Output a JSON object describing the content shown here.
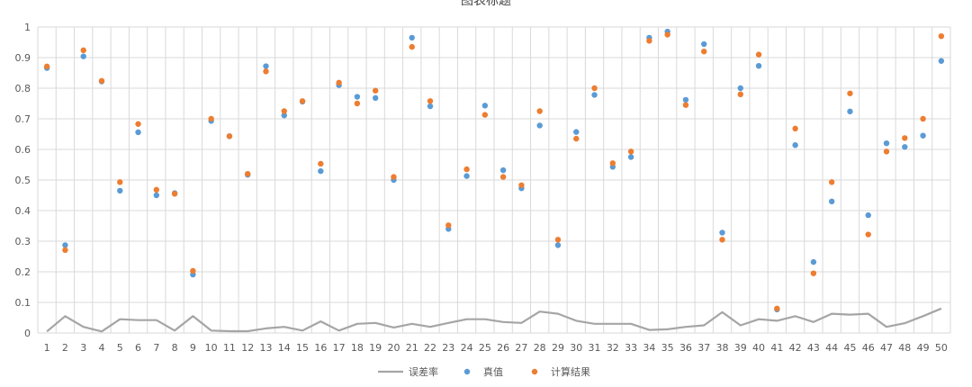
{
  "chart_data": {
    "type": "scatter",
    "title": "图表标题",
    "xlabel": "",
    "ylabel": "",
    "x": [
      1,
      2,
      3,
      4,
      5,
      6,
      7,
      8,
      9,
      10,
      11,
      12,
      13,
      14,
      15,
      16,
      17,
      18,
      19,
      20,
      21,
      22,
      23,
      24,
      25,
      26,
      27,
      28,
      29,
      30,
      31,
      32,
      33,
      34,
      35,
      36,
      37,
      38,
      39,
      40,
      41,
      42,
      43,
      44,
      45,
      46,
      47,
      48,
      49,
      50
    ],
    "xlim": [
      1,
      50
    ],
    "ylim": [
      0,
      1
    ],
    "y_ticks": [
      0,
      0.1,
      0.2,
      0.3,
      0.4,
      0.5,
      0.6,
      0.7,
      0.8,
      0.9,
      1
    ],
    "y_tick_labels": [
      "0",
      "0.1",
      "0.2",
      "0.3",
      "0.4",
      "0.5",
      "0.6",
      "0.7",
      "0.8",
      "0.9",
      "1"
    ],
    "grid": true,
    "legend_position": "bottom",
    "series": [
      {
        "name": "误差率",
        "kind": "line",
        "color": "#a5a5a5",
        "values": [
          0.005,
          0.055,
          0.02,
          0.005,
          0.045,
          0.042,
          0.042,
          0.008,
          0.055,
          0.008,
          0.006,
          0.006,
          0.015,
          0.02,
          0.008,
          0.038,
          0.008,
          0.03,
          0.033,
          0.018,
          0.03,
          0.02,
          0.033,
          0.045,
          0.045,
          0.036,
          0.033,
          0.07,
          0.063,
          0.04,
          0.03,
          0.03,
          0.03,
          0.01,
          0.012,
          0.02,
          0.025,
          0.068,
          0.025,
          0.045,
          0.04,
          0.055,
          0.036,
          0.063,
          0.06,
          0.063,
          0.02,
          0.032,
          0.055,
          0.08
        ]
      },
      {
        "name": "真值",
        "kind": "scatter",
        "color": "#5b9bd5",
        "values": [
          0.866,
          0.287,
          0.904,
          0.822,
          0.465,
          0.656,
          0.45,
          0.457,
          0.191,
          0.693,
          0.643,
          0.517,
          0.872,
          0.711,
          0.756,
          0.529,
          0.81,
          0.772,
          0.768,
          0.5,
          0.965,
          0.741,
          0.34,
          0.513,
          0.743,
          0.532,
          0.473,
          0.678,
          0.287,
          0.657,
          0.778,
          0.543,
          0.575,
          0.965,
          0.985,
          0.762,
          0.944,
          0.328,
          0.8,
          0.873,
          0.077,
          0.614,
          0.232,
          0.43,
          0.724,
          0.385,
          0.62,
          0.608,
          0.645,
          0.889
        ]
      },
      {
        "name": "计算结果",
        "kind": "scatter",
        "color": "#ed7d31",
        "values": [
          0.871,
          0.271,
          0.924,
          0.824,
          0.493,
          0.683,
          0.468,
          0.455,
          0.203,
          0.7,
          0.643,
          0.52,
          0.855,
          0.725,
          0.758,
          0.553,
          0.818,
          0.75,
          0.792,
          0.51,
          0.935,
          0.758,
          0.352,
          0.535,
          0.713,
          0.51,
          0.483,
          0.725,
          0.305,
          0.635,
          0.8,
          0.555,
          0.593,
          0.955,
          0.975,
          0.745,
          0.92,
          0.305,
          0.78,
          0.91,
          0.08,
          0.668,
          0.195,
          0.493,
          0.783,
          0.322,
          0.593,
          0.637,
          0.7,
          0.97
        ]
      }
    ]
  }
}
